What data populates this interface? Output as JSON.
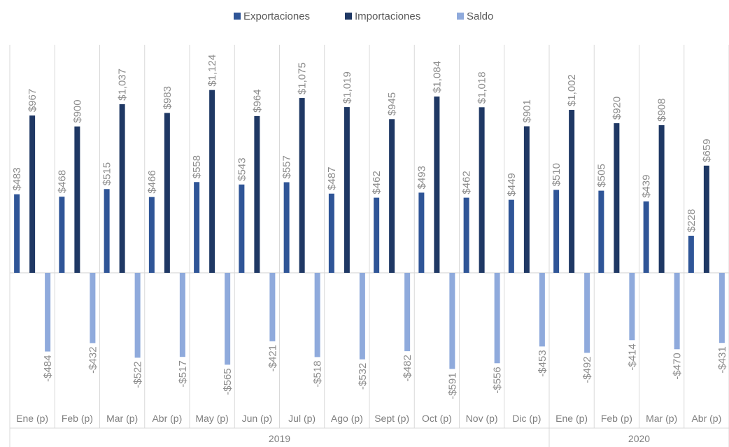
{
  "chart_data": {
    "type": "bar",
    "title": "",
    "xlabel": "",
    "ylabel": "",
    "ylim": [
      -620,
      1200
    ],
    "grid": false,
    "legend_position": "top-center",
    "categories": [
      "Ene (p)",
      "Feb (p)",
      "Mar (p)",
      "Abr (p)",
      "May (p)",
      "Jun (p)",
      "Jul (p)",
      "Ago (p)",
      "Sept (p)",
      "Oct (p)",
      "Nov (p)",
      "Dic (p)",
      "Ene (p)",
      "Feb (p)",
      "Mar (p)",
      "Abr (p)"
    ],
    "groups": [
      {
        "label": "2019",
        "count": 12
      },
      {
        "label": "2020",
        "count": 4
      }
    ],
    "series": [
      {
        "name": "Exportaciones",
        "color": "#2f5597",
        "values": [
          483,
          468,
          515,
          466,
          558,
          543,
          557,
          487,
          462,
          493,
          462,
          449,
          510,
          505,
          439,
          228
        ],
        "labels": [
          "$483",
          "$468",
          "$515",
          "$466",
          "$558",
          "$543",
          "$557",
          "$487",
          "$462",
          "$493",
          "$462",
          "$449",
          "$510",
          "$505",
          "$439",
          "$228"
        ]
      },
      {
        "name": "Importaciones",
        "color": "#1f3864",
        "values": [
          967,
          900,
          1037,
          983,
          1124,
          964,
          1075,
          1019,
          945,
          1084,
          1018,
          901,
          1002,
          920,
          908,
          659
        ],
        "labels": [
          "$967",
          "$900",
          "$1,037",
          "$983",
          "$1,124",
          "$964",
          "$1,075",
          "$1,019",
          "$945",
          "$1,084",
          "$1,018",
          "$901",
          "$1,002",
          "$920",
          "$908",
          "$659"
        ]
      },
      {
        "name": "Saldo",
        "color": "#8faadc",
        "values": [
          -484,
          -432,
          -522,
          -517,
          -565,
          -421,
          -518,
          -532,
          -482,
          -591,
          -556,
          -453,
          -492,
          -414,
          -470,
          -431
        ],
        "labels": [
          "-$484",
          "-$432",
          "-$522",
          "-$517",
          "-$565",
          "-$421",
          "-$518",
          "-$532",
          "-$482",
          "-$591",
          "-$556",
          "-$453",
          "-$492",
          "-$414",
          "-$470",
          "-$431"
        ]
      }
    ]
  }
}
